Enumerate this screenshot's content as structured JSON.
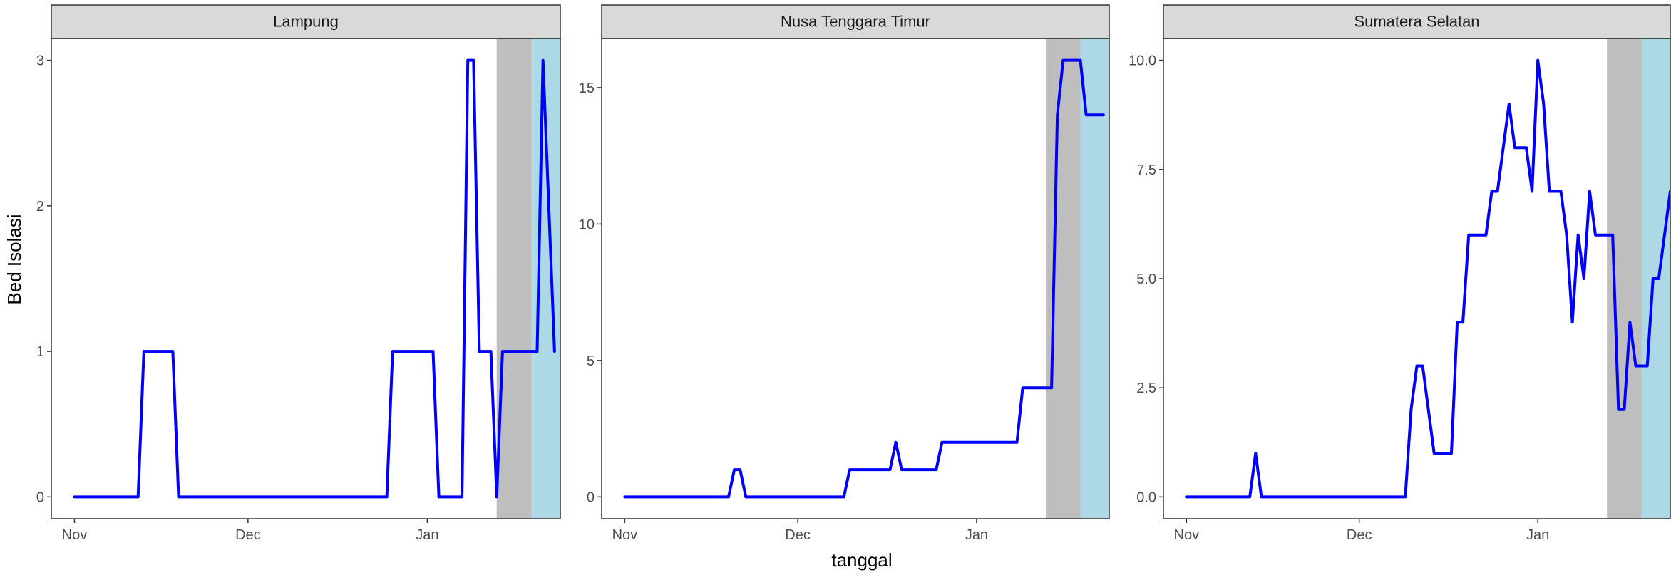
{
  "chart_data": {
    "type": "line",
    "xlabel": "tanggal",
    "ylabel": "Bed Isolasi",
    "x_domain": [
      "2020-10-28",
      "2021-01-24"
    ],
    "x_ticks": [
      {
        "date": "2020-11-01",
        "label": "Nov"
      },
      {
        "date": "2020-12-01",
        "label": "Dec"
      },
      {
        "date": "2021-01-01",
        "label": "Jan"
      }
    ],
    "line_color": "#0000ff",
    "grid": false,
    "shaded_bands": [
      {
        "start": "2021-01-13",
        "end": "2021-01-19",
        "color": "#bebebe"
      },
      {
        "start": "2021-01-19",
        "end": "2021-01-26",
        "color": "#add8e6"
      }
    ],
    "panels": [
      {
        "title": "Lampung",
        "ylim": [
          -0.15,
          3.15
        ],
        "y_ticks": [
          0,
          1,
          2,
          3
        ],
        "y_tick_labels": [
          "0",
          "1",
          "2",
          "3"
        ],
        "points": [
          [
            "2020-11-01",
            0
          ],
          [
            "2020-11-12",
            0
          ],
          [
            "2020-11-13",
            1
          ],
          [
            "2020-11-18",
            1
          ],
          [
            "2020-11-19",
            0
          ],
          [
            "2020-12-25",
            0
          ],
          [
            "2020-12-26",
            1
          ],
          [
            "2021-01-02",
            1
          ],
          [
            "2021-01-03",
            0
          ],
          [
            "2021-01-07",
            0
          ],
          [
            "2021-01-08",
            3
          ],
          [
            "2021-01-09",
            3
          ],
          [
            "2021-01-10",
            1
          ],
          [
            "2021-01-12",
            1
          ],
          [
            "2021-01-13",
            0
          ],
          [
            "2021-01-14",
            1
          ],
          [
            "2021-01-20",
            1
          ],
          [
            "2021-01-21",
            3
          ],
          [
            "2021-01-23",
            1
          ]
        ]
      },
      {
        "title": "Nusa Tenggara Timur",
        "ylim": [
          -0.8,
          16.8
        ],
        "y_ticks": [
          0,
          5,
          10,
          15
        ],
        "y_tick_labels": [
          "0",
          "5",
          "10",
          "15"
        ],
        "points": [
          [
            "2020-11-01",
            0
          ],
          [
            "2020-11-19",
            0
          ],
          [
            "2020-11-20",
            1
          ],
          [
            "2020-11-21",
            1
          ],
          [
            "2020-11-22",
            0
          ],
          [
            "2020-12-09",
            0
          ],
          [
            "2020-12-10",
            1
          ],
          [
            "2020-12-17",
            1
          ],
          [
            "2020-12-18",
            2
          ],
          [
            "2020-12-19",
            1
          ],
          [
            "2020-12-25",
            1
          ],
          [
            "2020-12-26",
            2
          ],
          [
            "2021-01-08",
            2
          ],
          [
            "2021-01-09",
            4
          ],
          [
            "2021-01-14",
            4
          ],
          [
            "2021-01-15",
            14
          ],
          [
            "2021-01-16",
            16
          ],
          [
            "2021-01-19",
            16
          ],
          [
            "2021-01-20",
            14
          ],
          [
            "2021-01-23",
            14
          ]
        ]
      },
      {
        "title": "Sumatera Selatan",
        "ylim": [
          -0.5,
          10.5
        ],
        "y_ticks": [
          0,
          2.5,
          5,
          7.5,
          10
        ],
        "y_tick_labels": [
          "0.0",
          "2.5",
          "5.0",
          "7.5",
          "10.0"
        ],
        "points": [
          [
            "2020-11-01",
            0
          ],
          [
            "2020-11-12",
            0
          ],
          [
            "2020-11-13",
            1
          ],
          [
            "2020-11-14",
            0
          ],
          [
            "2020-12-09",
            0
          ],
          [
            "2020-12-10",
            2
          ],
          [
            "2020-12-11",
            3
          ],
          [
            "2020-12-12",
            3
          ],
          [
            "2020-12-14",
            1
          ],
          [
            "2020-12-17",
            1
          ],
          [
            "2020-12-18",
            4
          ],
          [
            "2020-12-19",
            4
          ],
          [
            "2020-12-20",
            6
          ],
          [
            "2020-12-23",
            6
          ],
          [
            "2020-12-24",
            7
          ],
          [
            "2020-12-25",
            7
          ],
          [
            "2020-12-27",
            9
          ],
          [
            "2020-12-28",
            8
          ],
          [
            "2020-12-30",
            8
          ],
          [
            "2020-12-31",
            7
          ],
          [
            "2021-01-01",
            10
          ],
          [
            "2021-01-02",
            9
          ],
          [
            "2021-01-03",
            7
          ],
          [
            "2021-01-05",
            7
          ],
          [
            "2021-01-06",
            6
          ],
          [
            "2021-01-07",
            4
          ],
          [
            "2021-01-08",
            6
          ],
          [
            "2021-01-09",
            5
          ],
          [
            "2021-01-10",
            7
          ],
          [
            "2021-01-11",
            6
          ],
          [
            "2021-01-14",
            6
          ],
          [
            "2021-01-15",
            2
          ],
          [
            "2021-01-16",
            2
          ],
          [
            "2021-01-17",
            4
          ],
          [
            "2021-01-18",
            3
          ],
          [
            "2021-01-20",
            3
          ],
          [
            "2021-01-21",
            5
          ],
          [
            "2021-01-22",
            5
          ],
          [
            "2021-01-23",
            6
          ],
          [
            "2021-01-24",
            7
          ]
        ]
      }
    ]
  }
}
